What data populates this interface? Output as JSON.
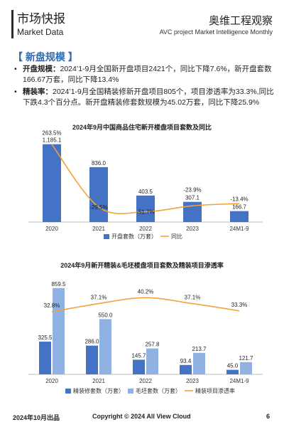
{
  "header": {
    "title_cn": "市场快报",
    "title_en": "Market Data",
    "brand_cn": "奥维工程观察",
    "brand_en": "AVC  project Market Intelligence Monthly"
  },
  "section_title": "【 新盘规模 】",
  "bullets": [
    {
      "label": "开盘规模：",
      "text": "2024’1-9月全国新开盘项目2421个，同比下降7.6%，新开盘套数166.67万套，同比下降13.4%"
    },
    {
      "label": "精装率：",
      "text": "2024’1-9月全国精装修新开盘项目805个，项目渗透率为33.3%,同比下跌4.3个百分点。新开盘精装修套数规模为45.02万套，同比下降25.9%"
    }
  ],
  "footer": {
    "date": "2024年10月出品",
    "copyright": "Copyright © 2024  All View Cloud",
    "page": "6"
  },
  "colors": {
    "bar_dark": "#4472c4",
    "bar_light": "#8fb2e3",
    "line": "#f2a23a",
    "accent": "#2f6db3"
  },
  "chart_data": [
    {
      "type": "bar",
      "title": "2024年9月中国商品住宅新开楼盘项目套数及同比",
      "categories": [
        "2020",
        "2021",
        "2022",
        "2023",
        "24M1-9"
      ],
      "series": [
        {
          "name": "开盘套数（万套）",
          "type": "bar",
          "values": [
            1185.1,
            836.0,
            403.5,
            307.1,
            166.7
          ],
          "labels": [
            "1,185.1",
            "836.0",
            "403.5",
            "307.1",
            "166.7"
          ]
        },
        {
          "name": "同比",
          "type": "line",
          "values": [
            263.5,
            -29.5,
            -51.7,
            -23.9,
            -13.4
          ],
          "labels": [
            "263.5%",
            "-29.5%",
            "-51.7%",
            "-23.9%",
            "-13.4%"
          ]
        }
      ],
      "ylim": [
        0,
        1300
      ],
      "y2lim": [
        -100,
        300
      ]
    },
    {
      "type": "bar",
      "title": "2024年9月新开精装&毛坯楼盘项目套数及精装项目渗透率",
      "categories": [
        "2020",
        "2021",
        "2022",
        "2023",
        "24M1-9"
      ],
      "series": [
        {
          "name": "精装修套数（万套）",
          "type": "bar",
          "values": [
            325.5,
            286.0,
            145.7,
            93.4,
            45.0
          ],
          "labels": [
            "325.5",
            "286.0",
            "145.7",
            "93.4",
            "45.0"
          ]
        },
        {
          "name": "毛坯套数（万套）",
          "type": "bar",
          "values": [
            859.5,
            550.0,
            257.8,
            213.7,
            121.7
          ],
          "labels": [
            "859.5",
            "550.0",
            "257.8",
            "213.7",
            "121.7"
          ]
        },
        {
          "name": "精装项目渗透率",
          "type": "line",
          "values": [
            32.8,
            37.1,
            40.2,
            37.1,
            33.3
          ],
          "labels": [
            "32.8%",
            "37.1%",
            "40.2%",
            "37.1%",
            "33.3%"
          ]
        }
      ],
      "ylim": [
        0,
        950
      ],
      "y2lim": [
        0,
        50
      ]
    }
  ]
}
